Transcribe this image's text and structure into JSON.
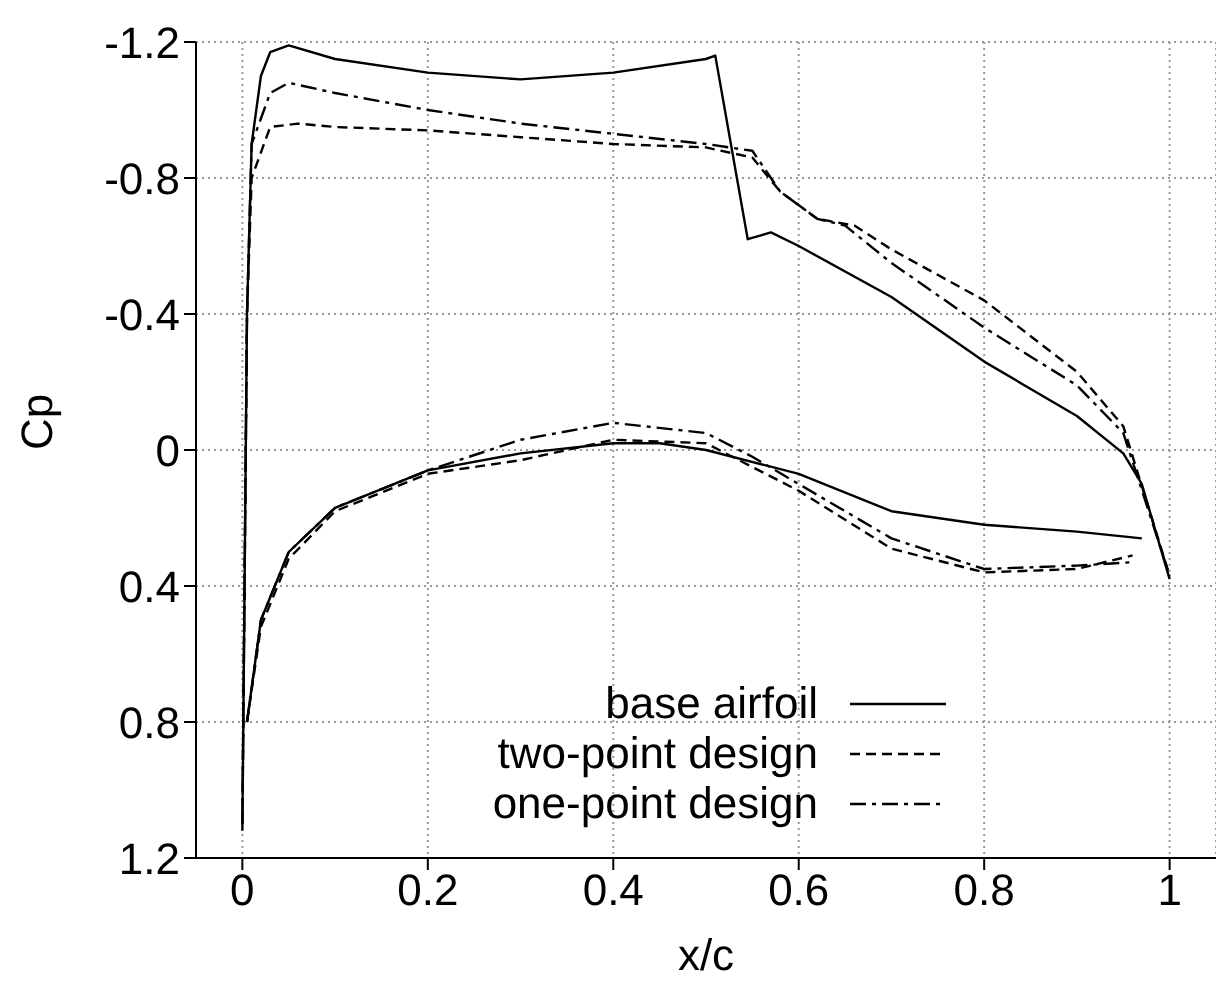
{
  "chart_data": {
    "type": "line",
    "xlabel": "x/c",
    "ylabel": "Cp",
    "xlim": [
      -0.05,
      1.05
    ],
    "ylim": [
      1.2,
      -1.2
    ],
    "xticks": [
      0,
      0.2,
      0.4,
      0.6,
      0.8,
      1
    ],
    "yticks": [
      -1.2,
      -0.8,
      -0.4,
      0,
      0.4,
      0.8,
      1.2
    ],
    "grid": true,
    "legend": "bottom right",
    "marker": "none",
    "series": [
      {
        "name": "base airfoil",
        "color": "#000000",
        "line_style": "solid",
        "x": [
          0,
          0.005,
          0.01,
          0.02,
          0.03,
          0.05,
          0.1,
          0.2,
          0.3,
          0.4,
          0.5,
          0.51,
          0.545,
          0.57,
          0.6,
          0.7,
          0.8,
          0.9,
          0.95,
          0.97,
          1
        ],
        "values": [
          1.12,
          -0.4,
          -0.9,
          -1.1,
          -1.17,
          -1.19,
          -1.15,
          -1.11,
          -1.09,
          -1.11,
          -1.15,
          -1.16,
          -0.62,
          -0.64,
          -0.6,
          -0.45,
          -0.26,
          -0.1,
          0.01,
          0.1,
          0.38
        ]
      },
      {
        "color": "#000000",
        "line_style": "solid",
        "x": [
          0.005,
          0.02,
          0.05,
          0.1,
          0.2,
          0.3,
          0.4,
          0.45,
          0.5,
          0.6,
          0.7,
          0.8,
          0.9,
          0.97
        ],
        "values": [
          0.8,
          0.5,
          0.3,
          0.17,
          0.06,
          0.01,
          -0.02,
          -0.02,
          0,
          0.07,
          0.18,
          0.22,
          0.24,
          0.26
        ]
      },
      {
        "name": "two-point design",
        "color": "#000000",
        "line_style": "dashed",
        "x": [
          0,
          0.005,
          0.01,
          0.03,
          0.06,
          0.1,
          0.2,
          0.3,
          0.4,
          0.5,
          0.55,
          0.58,
          0.62,
          0.66,
          0.7,
          0.8,
          0.9,
          0.95,
          1
        ],
        "values": [
          1.1,
          -0.4,
          -0.8,
          -0.95,
          -0.96,
          -0.95,
          -0.94,
          -0.92,
          -0.9,
          -0.89,
          -0.86,
          -0.76,
          -0.68,
          -0.66,
          -0.59,
          -0.44,
          -0.23,
          -0.07,
          0.37
        ]
      },
      {
        "color": "#000000",
        "line_style": "dashed",
        "x": [
          0.005,
          0.02,
          0.05,
          0.1,
          0.2,
          0.3,
          0.4,
          0.5,
          0.6,
          0.7,
          0.8,
          0.9,
          0.96
        ],
        "values": [
          0.8,
          0.52,
          0.32,
          0.18,
          0.07,
          0.03,
          -0.03,
          -0.02,
          0.12,
          0.29,
          0.36,
          0.35,
          0.31
        ]
      },
      {
        "name": "one-point design",
        "color": "#000000",
        "line_style": "dashdot",
        "x": [
          0,
          0.005,
          0.01,
          0.03,
          0.05,
          0.1,
          0.2,
          0.3,
          0.4,
          0.5,
          0.55,
          0.58,
          0.62,
          0.65,
          0.7,
          0.8,
          0.9,
          0.95,
          1
        ],
        "values": [
          1.1,
          -0.4,
          -0.9,
          -1.05,
          -1.08,
          -1.05,
          -1.0,
          -0.96,
          -0.93,
          -0.9,
          -0.88,
          -0.76,
          -0.68,
          -0.66,
          -0.55,
          -0.36,
          -0.19,
          -0.05,
          0.37
        ]
      },
      {
        "color": "#000000",
        "line_style": "dashdot",
        "x": [
          0.005,
          0.02,
          0.05,
          0.1,
          0.2,
          0.3,
          0.4,
          0.5,
          0.55,
          0.6,
          0.7,
          0.8,
          0.9,
          0.96
        ],
        "values": [
          0.8,
          0.5,
          0.3,
          0.17,
          0.06,
          -0.03,
          -0.08,
          -0.05,
          0.02,
          0.1,
          0.26,
          0.35,
          0.34,
          0.33
        ]
      }
    ]
  }
}
